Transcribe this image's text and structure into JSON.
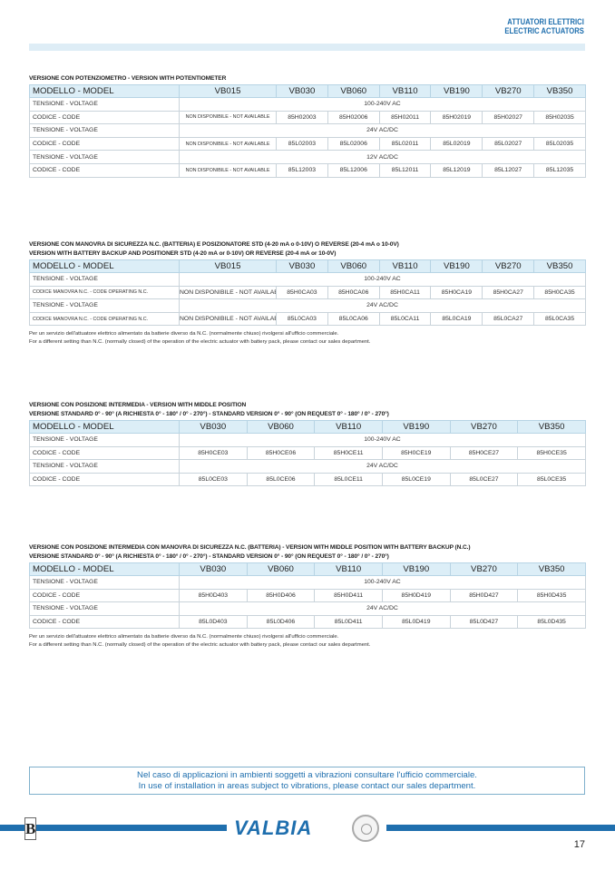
{
  "header": {
    "line1": "ATTUATORI ELETTRICI",
    "line2": "ELECTRIC ACTUATORS"
  },
  "sections": [
    {
      "titles": [
        "VERSIONE CON POTENZIOMETRO - VERSION WITH POTENTIOMETER"
      ],
      "columns": [
        "MODELLO - MODEL",
        "VB015",
        "VB030",
        "VB060",
        "VB110",
        "VB190",
        "VB270",
        "VB350"
      ],
      "rows": [
        {
          "type": "voltage",
          "label": "TENSIONE - VOLTAGE",
          "value": "100-240V AC"
        },
        {
          "type": "code",
          "label": "CODICE - CODE",
          "values": [
            "NON DISPONIBILE - NOT AVAILABLE",
            "85H02003",
            "85H02006",
            "85H02011",
            "85H02019",
            "85H02027",
            "85H02035"
          ]
        },
        {
          "type": "voltage",
          "label": "TENSIONE - VOLTAGE",
          "value": "24V AC/DC"
        },
        {
          "type": "code",
          "label": "CODICE - CODE",
          "values": [
            "NON DISPONIBILE - NOT AVAILABLE",
            "85L02003",
            "85L02006",
            "85L02011",
            "85L02019",
            "85L02027",
            "85L02035"
          ]
        },
        {
          "type": "voltage",
          "label": "TENSIONE - VOLTAGE",
          "value": "12V AC/DC"
        },
        {
          "type": "code",
          "label": "CODICE - CODE",
          "values": [
            "NON DISPONIBILE - NOT AVAILABLE",
            "85L12003",
            "85L12006",
            "85L12011",
            "85L12019",
            "85L12027",
            "85L12035"
          ]
        }
      ],
      "notes": []
    },
    {
      "titles": [
        "VERSIONE CON MANOVRA DI SICUREZZA N.C. (BATTERIA) E POSIZIONATORE STD (4-20 mA o 0-10V) O REVERSE (20-4 mA o 10-0V)",
        "VERSION WITH BATTERY BACKUP AND POSITIONER STD (4-20 mA or 0-10V) OR REVERSE (20-4 mA or 10-0V)"
      ],
      "columns": [
        "MODELLO - MODEL",
        "VB015",
        "VB030",
        "VB060",
        "VB110",
        "VB190",
        "VB270",
        "VB350"
      ],
      "rows": [
        {
          "type": "voltage",
          "label": "TENSIONE - VOLTAGE",
          "value": "100-240V AC"
        },
        {
          "type": "code",
          "small": true,
          "label": "CODICE MANOVRA N.C. - CODE OPERATING N.C.",
          "values": [
            "NON DISPONIBILE - NOT AVAILABLE",
            "85H0CA03",
            "85H0CA06",
            "85H0CA11",
            "85H0CA19",
            "85H0CA27",
            "85H0CA35"
          ]
        },
        {
          "type": "voltage",
          "label": "TENSIONE - VOLTAGE",
          "value": "24V AC/DC"
        },
        {
          "type": "code",
          "small": true,
          "label": "CODICE MANOVRA N.C. - CODE OPERATING N.C.",
          "values": [
            "NON DISPONIBILE - NOT AVAILABLE",
            "85L0CA03",
            "85L0CA06",
            "85L0CA11",
            "85L0CA19",
            "85L0CA27",
            "85L0CA35"
          ]
        }
      ],
      "notes": [
        "Per un servizio dell'attuatore elettrico alimentato da batterie diverso da N.C. (normalmente chiuso) rivolgersi all'ufficio commerciale.",
        "For a different setting than N.C. (normally closed) of the operation of the electric actuator with battery pack, please contact our sales department."
      ]
    },
    {
      "titles": [
        "VERSIONE CON POSIZIONE INTERMEDIA - VERSION WITH MIDDLE POSITION",
        "VERSIONE STANDARD 0° - 90° (A RICHIESTA 0° - 180° / 0° - 270°) - STANDARD VERSION 0° - 90° (ON REQUEST 0° - 180° / 0° - 270°)"
      ],
      "columns": [
        "MODELLO - MODEL",
        "VB030",
        "VB060",
        "VB110",
        "VB190",
        "VB270",
        "VB350"
      ],
      "rows": [
        {
          "type": "voltage",
          "label": "TENSIONE - VOLTAGE",
          "value": "100-240V AC"
        },
        {
          "type": "code",
          "label": "CODICE - CODE",
          "values": [
            "85H0CE03",
            "85H0CE06",
            "85H0CE11",
            "85H0CE19",
            "85H0CE27",
            "85H0CE35"
          ]
        },
        {
          "type": "voltage",
          "label": "TENSIONE - VOLTAGE",
          "value": "24V AC/DC"
        },
        {
          "type": "code",
          "label": "CODICE - CODE",
          "values": [
            "85L0CE03",
            "85L0CE06",
            "85L0CE11",
            "85L0CE19",
            "85L0CE27",
            "85L0CE35"
          ]
        }
      ],
      "notes": []
    },
    {
      "titles": [
        "VERSIONE CON POSIZIONE INTERMEDIA CON MANOVRA DI SICUREZZA N.C. (BATTERIA) - VERSION WITH MIDDLE POSITION WITH BATTERY BACKUP (N.C.)",
        "VERSIONE STANDARD 0° - 90° (A RICHIESTA 0° - 180° / 0° - 270°) - STANDARD VERSION 0° - 90° (ON REQUEST 0° - 180° / 0° - 270°)"
      ],
      "columns": [
        "MODELLO - MODEL",
        "VB030",
        "VB060",
        "VB110",
        "VB190",
        "VB270",
        "VB350"
      ],
      "rows": [
        {
          "type": "voltage",
          "label": "TENSIONE - VOLTAGE",
          "value": "100-240V AC"
        },
        {
          "type": "code",
          "label": "CODICE - CODE",
          "values": [
            "85H0D403",
            "85H0D406",
            "85H0D411",
            "85H0D419",
            "85H0D427",
            "85H0D435"
          ]
        },
        {
          "type": "voltage",
          "label": "TENSIONE - VOLTAGE",
          "value": "24V AC/DC"
        },
        {
          "type": "code",
          "label": "CODICE - CODE",
          "values": [
            "85L0D403",
            "85L0D406",
            "85L0D411",
            "85L0D419",
            "85L0D427",
            "85L0D435"
          ]
        }
      ],
      "notes": [
        "Per un servizio dell'attuatore elettrico alimentato da batterie diverso da N.C. (normalmente chiuso) rivolgersi all'ufficio commerciale.",
        "For a different setting than N.C. (normally closed) of the operation of the electric actuator with battery pack, please contact our sales department."
      ]
    }
  ],
  "notice": {
    "line1": "Nel caso di applicazioni in ambienti soggetti a vibrazioni consultare l'ufficio commerciale.",
    "line2": "In use of installation in areas subject to vibrations, please contact our sales department."
  },
  "footer": {
    "brand": "VALBIA",
    "group_logo": "BONOMI GROUP",
    "page_number": "17"
  },
  "colors": {
    "accent": "#1f6fae",
    "header_fill": "#dceef7"
  }
}
